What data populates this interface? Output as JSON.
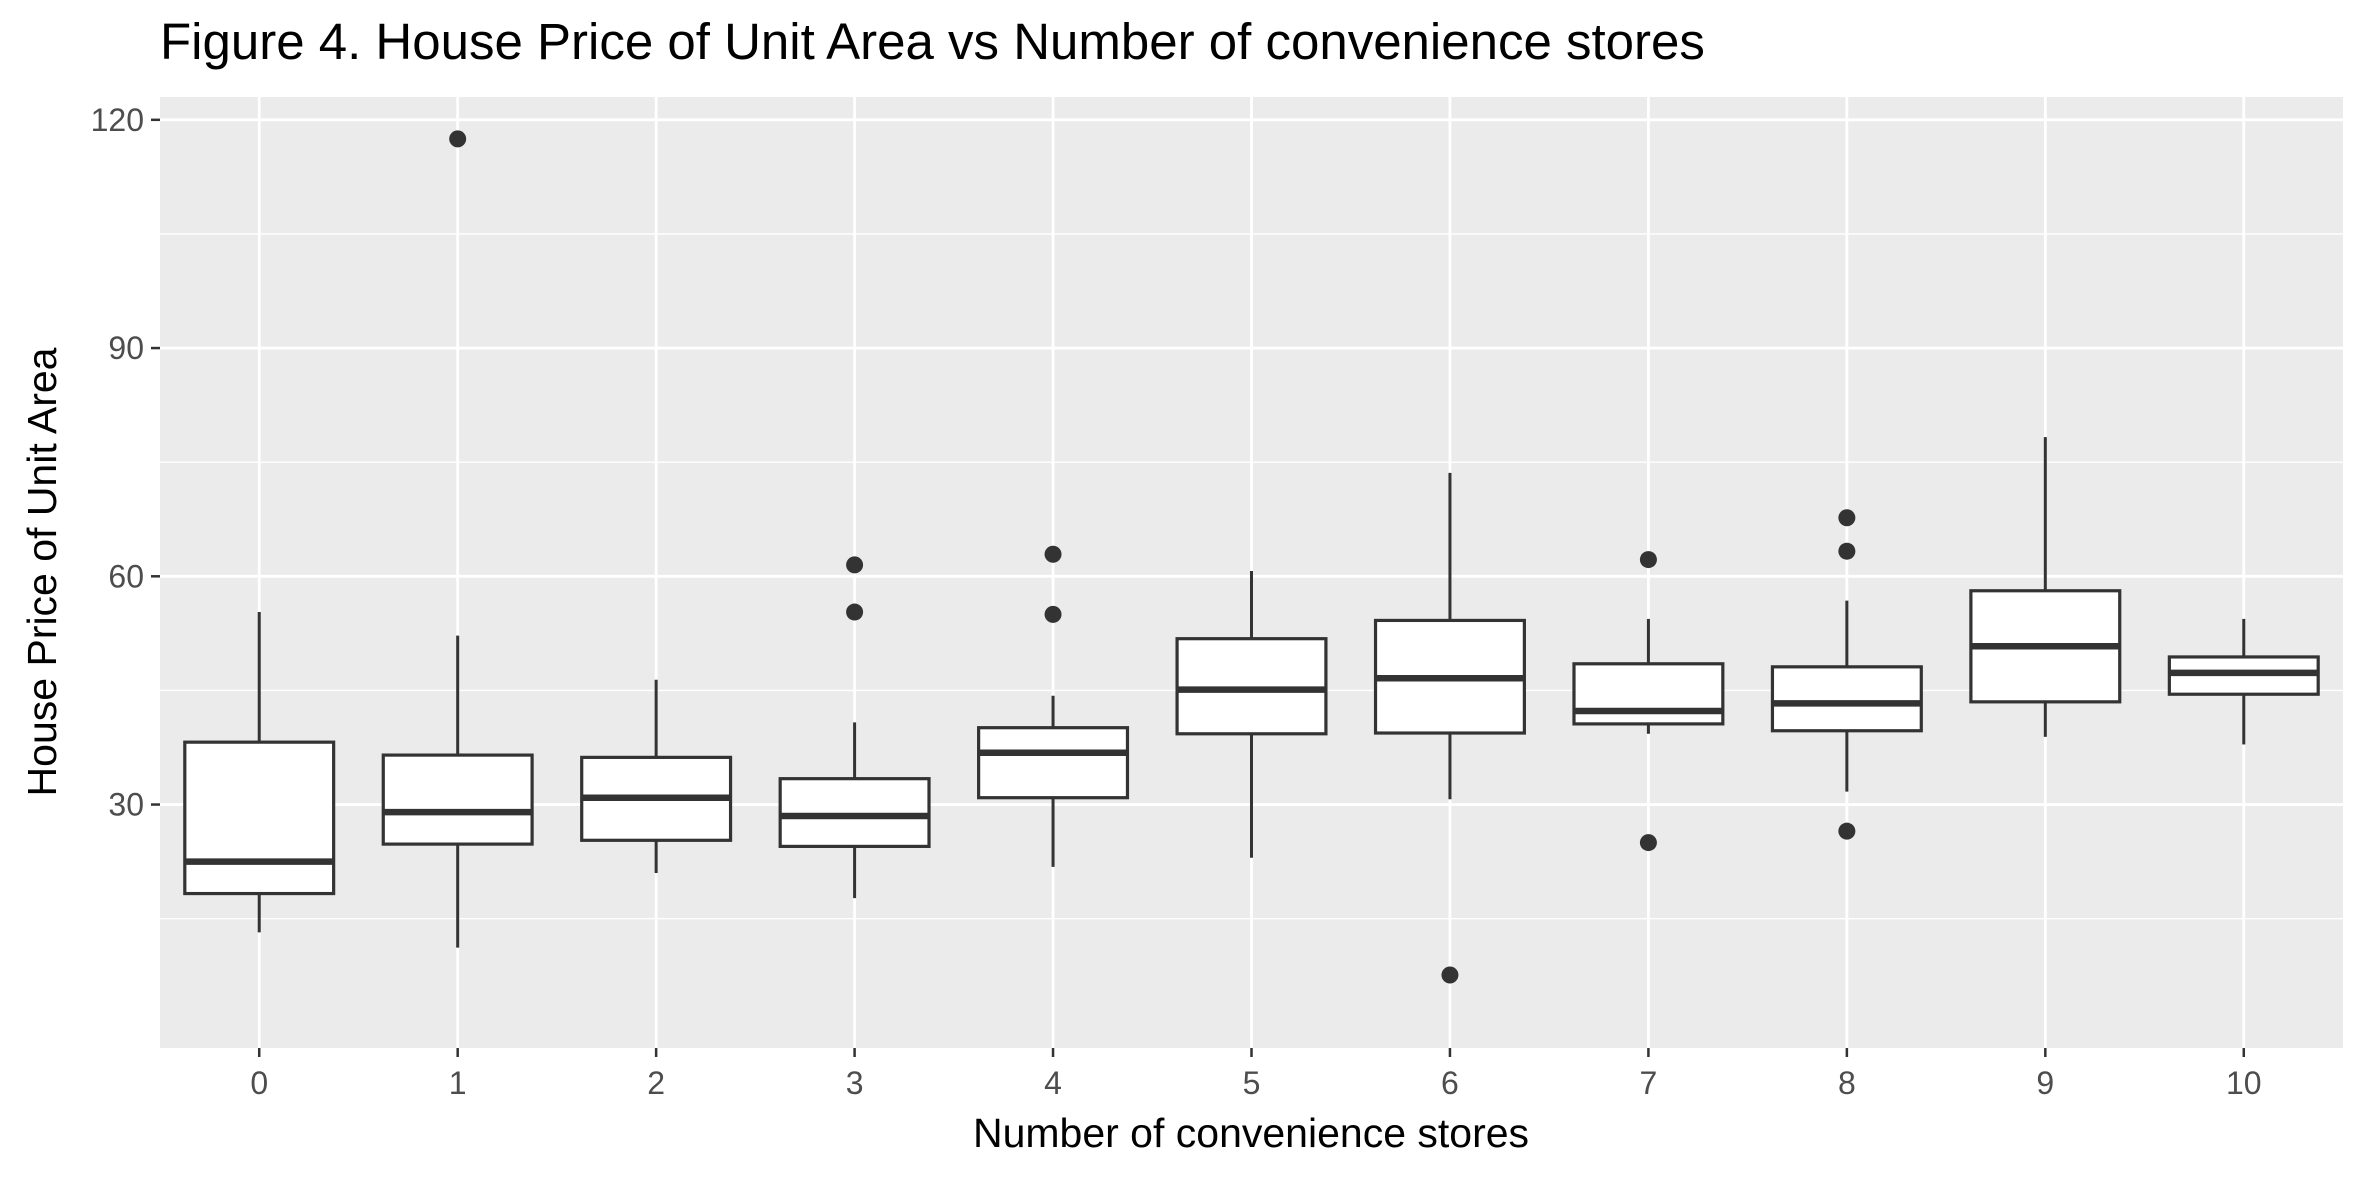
{
  "chart_data": {
    "type": "boxplot",
    "title": "Figure 4. House Price of Unit Area vs Number of convenience stores",
    "xlabel": "Number of convenience stores",
    "ylabel": "House Price of Unit Area",
    "categories": [
      "0",
      "1",
      "2",
      "3",
      "4",
      "5",
      "6",
      "7",
      "8",
      "9",
      "10"
    ],
    "ylim": [
      -2,
      123
    ],
    "yticks": [
      30,
      60,
      90,
      120
    ],
    "grid": true,
    "boxes": [
      {
        "category": "0",
        "lower_whisker": 13.2,
        "q1": 18.3,
        "median": 22.5,
        "q3": 38.2,
        "upper_whisker": 55.3,
        "outliers": []
      },
      {
        "category": "1",
        "lower_whisker": 11.2,
        "q1": 24.8,
        "median": 29.0,
        "q3": 36.5,
        "upper_whisker": 52.2,
        "outliers": [
          117.5
        ]
      },
      {
        "category": "2",
        "lower_whisker": 21.0,
        "q1": 25.3,
        "median": 30.9,
        "q3": 36.2,
        "upper_whisker": 46.4,
        "outliers": []
      },
      {
        "category": "3",
        "lower_whisker": 17.7,
        "q1": 24.5,
        "median": 28.5,
        "q3": 33.4,
        "upper_whisker": 40.8,
        "outliers": [
          55.3,
          61.5
        ]
      },
      {
        "category": "4",
        "lower_whisker": 21.8,
        "q1": 30.9,
        "median": 36.8,
        "q3": 40.1,
        "upper_whisker": 44.3,
        "outliers": [
          55.0,
          62.9
        ]
      },
      {
        "category": "5",
        "lower_whisker": 23.0,
        "q1": 39.3,
        "median": 45.1,
        "q3": 51.8,
        "upper_whisker": 60.7,
        "outliers": []
      },
      {
        "category": "6",
        "lower_whisker": 30.7,
        "q1": 39.4,
        "median": 46.6,
        "q3": 54.2,
        "upper_whisker": 73.6,
        "outliers": [
          7.6
        ]
      },
      {
        "category": "7",
        "lower_whisker": 39.3,
        "q1": 40.6,
        "median": 42.3,
        "q3": 48.5,
        "upper_whisker": 54.4,
        "outliers": [
          25.0,
          62.2
        ]
      },
      {
        "category": "8",
        "lower_whisker": 31.7,
        "q1": 39.7,
        "median": 43.3,
        "q3": 48.1,
        "upper_whisker": 56.8,
        "outliers": [
          26.5,
          63.3,
          67.7
        ]
      },
      {
        "category": "9",
        "lower_whisker": 38.9,
        "q1": 43.5,
        "median": 50.8,
        "q3": 58.1,
        "upper_whisker": 78.3,
        "outliers": []
      },
      {
        "category": "10",
        "lower_whisker": 37.9,
        "q1": 44.5,
        "median": 47.3,
        "q3": 49.4,
        "upper_whisker": 54.4,
        "outliers": []
      }
    ]
  }
}
